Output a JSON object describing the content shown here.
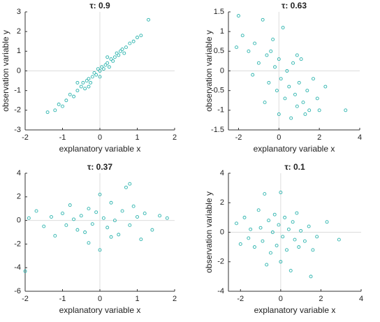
{
  "chart_data": [
    {
      "type": "scatter",
      "title": "τ: 0.9",
      "x_label": "explanatory variable x",
      "y_label": "observation variable y",
      "color": "#2ab3ad",
      "zero_lines": true,
      "xlim": [
        -2,
        2
      ],
      "ylim": [
        -3,
        3
      ],
      "xticks": [
        -2,
        -1,
        0,
        1,
        2
      ],
      "yticks": [
        -3,
        -2,
        -1,
        0,
        1,
        2,
        3
      ],
      "x": [
        -1.4,
        -1.2,
        -1.1,
        -1.0,
        -0.9,
        -0.8,
        -0.7,
        -0.6,
        -0.5,
        -0.45,
        -0.4,
        -0.35,
        -0.3,
        -0.25,
        -0.2,
        -0.15,
        -0.1,
        -0.05,
        0,
        0.05,
        0.1,
        0.15,
        0.2,
        0.25,
        0.3,
        0.35,
        0.4,
        0.45,
        0.5,
        0.55,
        0.6,
        0.65,
        0.7,
        0.8,
        0.9,
        1.0,
        1.1,
        1.3,
        -0.6,
        0.0,
        0.2,
        -0.3
      ],
      "y": [
        -2.1,
        -2.0,
        -1.7,
        -1.8,
        -1.5,
        -1.2,
        -1.3,
        -1.0,
        -0.8,
        -0.6,
        -0.9,
        -0.5,
        -0.4,
        -0.6,
        -0.3,
        -0.1,
        -0.2,
        0.1,
        0.0,
        0.2,
        0.1,
        0.3,
        0.4,
        0.2,
        0.6,
        0.5,
        0.7,
        0.9,
        0.8,
        1.0,
        1.1,
        0.9,
        1.2,
        1.4,
        1.5,
        1.7,
        1.8,
        2.6,
        -0.6,
        -0.3,
        0.7,
        -0.8
      ]
    },
    {
      "type": "scatter",
      "title": "τ: 0.63",
      "x_label": "explanatory variable x",
      "y_label": "observation variable y",
      "color": "#2ab3ad",
      "zero_lines": true,
      "xlim": [
        -2.5,
        4
      ],
      "ylim": [
        -1.5,
        1.5
      ],
      "xticks": [
        -2,
        0,
        2,
        4
      ],
      "yticks": [
        -1.5,
        -1,
        -0.5,
        0,
        0.5,
        1,
        1.5
      ],
      "x": [
        -2.0,
        -2.1,
        -1.8,
        -1.5,
        -1.2,
        -1.0,
        -0.8,
        -0.6,
        -0.5,
        -0.3,
        -0.2,
        -0.1,
        0,
        0.1,
        0.2,
        0.3,
        0.4,
        0.5,
        0.6,
        0.7,
        0.8,
        0.9,
        1.0,
        1.1,
        1.2,
        1.4,
        1.5,
        1.7,
        1.9,
        2.0,
        2.3,
        3.3,
        -1.3,
        -0.7,
        0.0,
        -0.4,
        0.9,
        1.3
      ],
      "y": [
        1.4,
        0.6,
        0.9,
        0.5,
        0.7,
        0.2,
        1.3,
        0.4,
        -0.3,
        0.8,
        0.1,
        -0.5,
        0.3,
        -0.2,
        1.1,
        -0.7,
        0.0,
        -0.4,
        -1.2,
        0.2,
        -0.6,
        -0.9,
        -0.3,
        0.3,
        -0.8,
        -0.5,
        -1.0,
        -0.2,
        -0.7,
        -1.0,
        -0.4,
        -1.0,
        -0.1,
        -0.8,
        -1.1,
        0.5,
        0.4,
        -1.1
      ]
    },
    {
      "type": "scatter",
      "title": "τ: 0.37",
      "x_label": "explanatory variable x",
      "color": "#2ab3ad",
      "zero_lines": true,
      "xlim": [
        -2,
        2
      ],
      "ylim": [
        -6,
        4
      ],
      "xticks": [
        -2,
        -1,
        0,
        1,
        2
      ],
      "yticks": [
        -6,
        -4,
        -2,
        0,
        2,
        4
      ],
      "x": [
        -2.0,
        -1.9,
        -1.7,
        -1.5,
        -1.3,
        -1.2,
        -1.0,
        -0.9,
        -0.8,
        -0.7,
        -0.6,
        -0.5,
        -0.4,
        -0.3,
        -0.2,
        -0.1,
        0.0,
        0.0,
        0.1,
        0.2,
        0.3,
        0.4,
        0.5,
        0.6,
        0.7,
        0.8,
        0.9,
        1.0,
        1.1,
        1.2,
        1.4,
        1.6,
        1.8,
        -0.3,
        0.3,
        0.8
      ],
      "y": [
        -4.3,
        0.2,
        0.8,
        -0.5,
        0.3,
        -1.3,
        0.6,
        -0.4,
        1.3,
        0.1,
        -0.8,
        0.4,
        -1.0,
        1.0,
        -0.3,
        0.7,
        -2.5,
        2.2,
        0.2,
        -0.6,
        1.5,
        0.0,
        -1.2,
        0.8,
        2.8,
        -0.4,
        1.2,
        0.3,
        -1.6,
        0.6,
        -0.8,
        0.4,
        0.2,
        -1.9,
        -1.4,
        3.1
      ]
    },
    {
      "type": "scatter",
      "title": "τ: 0.1",
      "x_label": "explanatory variable x",
      "y_label": "observation variable y",
      "color": "#2ab3ad",
      "zero_lines": true,
      "xlim": [
        -2.6,
        4
      ],
      "ylim": [
        -4,
        4
      ],
      "xticks": [
        -2,
        0,
        2,
        4
      ],
      "yticks": [
        -4,
        -2,
        0,
        2,
        4
      ],
      "x": [
        -2.2,
        -2.0,
        -1.8,
        -1.6,
        -1.5,
        -1.3,
        -1.1,
        -1.0,
        -0.9,
        -0.8,
        -0.6,
        -0.5,
        -0.4,
        -0.3,
        -0.2,
        -0.1,
        0.0,
        0.0,
        0.1,
        0.2,
        0.3,
        0.4,
        0.5,
        0.6,
        0.7,
        0.8,
        0.9,
        1.0,
        1.2,
        1.4,
        1.6,
        1.8,
        2.3,
        2.9,
        1.5,
        -0.7
      ],
      "y": [
        0.6,
        -0.8,
        1.0,
        -0.4,
        0.2,
        -1.0,
        1.5,
        0.3,
        -0.6,
        2.6,
        0.8,
        -1.4,
        0.0,
        1.2,
        -0.9,
        0.5,
        2.7,
        -2.0,
        -0.3,
        1.0,
        -1.2,
        0.2,
        -2.6,
        0.7,
        -0.5,
        1.3,
        -1.0,
        0.1,
        -0.6,
        0.4,
        -1.2,
        -0.3,
        0.7,
        -0.5,
        -3.0,
        -2.2
      ]
    }
  ]
}
